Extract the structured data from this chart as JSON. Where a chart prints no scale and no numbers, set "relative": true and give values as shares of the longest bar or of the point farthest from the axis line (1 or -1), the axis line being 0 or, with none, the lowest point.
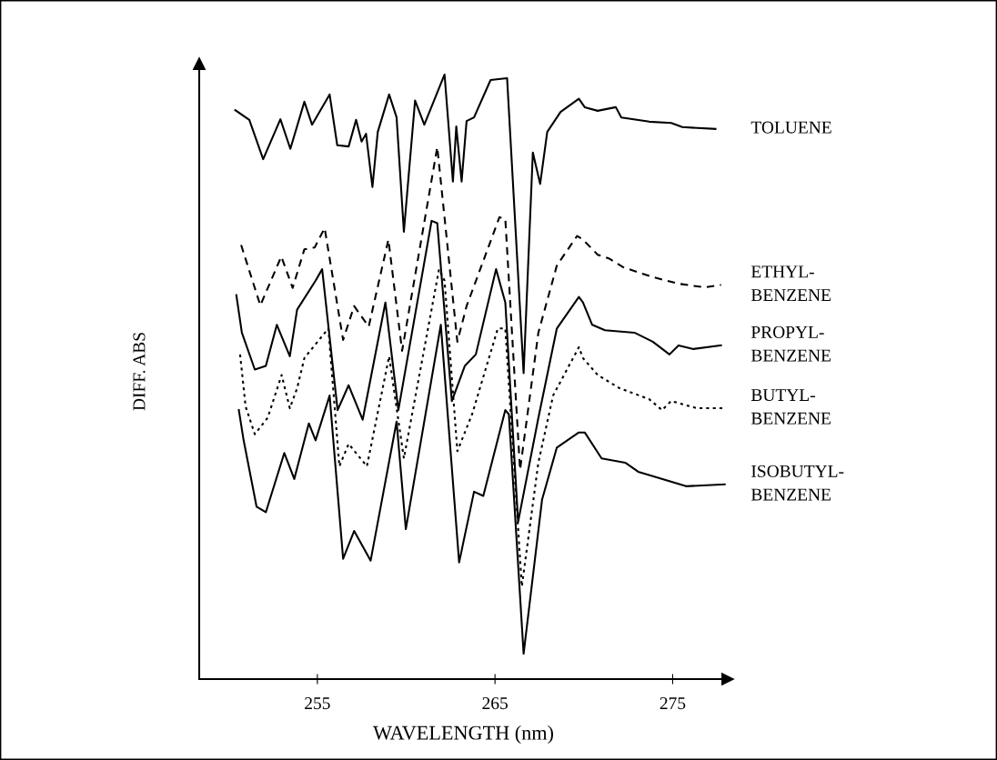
{
  "chart_data": {
    "type": "line",
    "relative": true,
    "xlabel": "WAVELENGTH (nm)",
    "ylabel": "DIFF. ABS",
    "xlim": [
      248.35,
      278.1
    ],
    "xticks": [
      255,
      265,
      275
    ],
    "tick_labels": "x",
    "grid": false,
    "series": [
      {
        "name": "TOLUENE",
        "color": "#000000",
        "line_style": "solid",
        "x": [
          250.38,
          251.17,
          251.95,
          252.92,
          253.48,
          254.27,
          254.7,
          255.69,
          256.12,
          256.76,
          257.18,
          257.49,
          257.74,
          258.1,
          258.4,
          259.04,
          259.46,
          259.87,
          260.5,
          261.02,
          262.16,
          262.63,
          262.82,
          263.12,
          263.4,
          263.82,
          264.75,
          265.68,
          266.61,
          267.13,
          267.54,
          267.94,
          268.69,
          269.72,
          270.05,
          270.78,
          271.8,
          272.11,
          273.68,
          274.92,
          275.54,
          277.41
        ],
        "values": [
          0.941,
          0.925,
          0.86,
          0.926,
          0.877,
          0.955,
          0.917,
          0.967,
          0.883,
          0.881,
          0.925,
          0.889,
          0.902,
          0.814,
          0.905,
          0.967,
          0.929,
          0.74,
          0.957,
          0.917,
          1.0,
          0.823,
          0.914,
          0.823,
          0.923,
          0.929,
          0.991,
          0.994,
          0.506,
          0.871,
          0.819,
          0.905,
          0.938,
          0.96,
          0.946,
          0.94,
          0.946,
          0.929,
          0.922,
          0.92,
          0.913,
          0.91
        ]
      },
      {
        "name": "ETHYL-\nBENZENE",
        "color": "#000000",
        "line_style": "dashed",
        "x": [
          250.71,
          251.79,
          252.97,
          253.61,
          254.27,
          254.85,
          255.41,
          256.45,
          257.07,
          257.89,
          259.0,
          259.77,
          261.75,
          262.88,
          263.4,
          265.25,
          265.58,
          266.41,
          267.44,
          268.48,
          269.62,
          269.95,
          270.78,
          271.4,
          272.23,
          273.88,
          275.33,
          276.78,
          277.72
        ],
        "values": [
          0.718,
          0.618,
          0.699,
          0.647,
          0.711,
          0.714,
          0.746,
          0.561,
          0.617,
          0.583,
          0.727,
          0.543,
          0.88,
          0.558,
          0.617,
          0.764,
          0.761,
          0.346,
          0.573,
          0.684,
          0.733,
          0.727,
          0.702,
          0.696,
          0.681,
          0.665,
          0.654,
          0.648,
          0.652
        ]
      },
      {
        "name": "PROPYL-\nBENZENE",
        "color": "#000000",
        "line_style": "solid",
        "x": [
          250.44,
          250.75,
          251.48,
          252.1,
          252.72,
          253.45,
          253.86,
          254.9,
          255.27,
          256.14,
          256.76,
          257.55,
          258.83,
          259.56,
          261.43,
          261.75,
          262.57,
          263.3,
          263.92,
          265.06,
          265.58,
          266.3,
          267.44,
          268.48,
          269.72,
          269.95,
          270.47,
          271.19,
          272.85,
          273.88,
          274.82,
          275.33,
          276.17,
          277.72
        ],
        "values": [
          0.635,
          0.573,
          0.512,
          0.518,
          0.586,
          0.534,
          0.611,
          0.659,
          0.678,
          0.445,
          0.486,
          0.429,
          0.623,
          0.445,
          0.758,
          0.754,
          0.46,
          0.518,
          0.537,
          0.678,
          0.623,
          0.26,
          0.432,
          0.58,
          0.632,
          0.623,
          0.586,
          0.577,
          0.573,
          0.558,
          0.537,
          0.552,
          0.546,
          0.552
        ]
      },
      {
        "name": "BUTYL-\nBENZENE",
        "color": "#000000",
        "line_style": "dotted",
        "x": [
          250.65,
          250.96,
          251.48,
          252.2,
          252.99,
          253.45,
          253.86,
          254.27,
          255.62,
          256.24,
          256.76,
          257.79,
          259.04,
          259.87,
          261.85,
          262.16,
          262.88,
          263.71,
          265.16,
          265.58,
          266.51,
          267.44,
          268.27,
          269.72,
          269.95,
          270.78,
          272.02,
          273.68,
          274.4,
          274.92,
          276.37,
          277.82
        ],
        "values": [
          0.537,
          0.451,
          0.405,
          0.432,
          0.503,
          0.448,
          0.481,
          0.531,
          0.58,
          0.352,
          0.389,
          0.352,
          0.534,
          0.365,
          0.678,
          0.659,
          0.377,
          0.438,
          0.58,
          0.58,
          0.153,
          0.358,
          0.469,
          0.549,
          0.531,
          0.503,
          0.481,
          0.463,
          0.445,
          0.46,
          0.448,
          0.448
        ]
      },
      {
        "name": "ISOBUTYL-\nBENZENE",
        "color": "#000000",
        "line_style": "solid",
        "x": [
          250.58,
          250.85,
          251.58,
          252.1,
          253.14,
          253.7,
          254.52,
          254.9,
          255.69,
          256.45,
          257.07,
          258.0,
          259.46,
          259.98,
          261.95,
          262.98,
          263.82,
          264.34,
          265.58,
          265.78,
          266.61,
          267.65,
          268.48,
          269.72,
          270.05,
          271.0,
          272.33,
          273.06,
          274.09,
          275.75,
          277.93
        ],
        "values": [
          0.445,
          0.395,
          0.285,
          0.276,
          0.374,
          0.331,
          0.423,
          0.395,
          0.469,
          0.199,
          0.245,
          0.196,
          0.426,
          0.248,
          0.586,
          0.193,
          0.31,
          0.303,
          0.445,
          0.438,
          0.042,
          0.297,
          0.383,
          0.408,
          0.408,
          0.365,
          0.358,
          0.343,
          0.334,
          0.319,
          0.322
        ]
      }
    ]
  }
}
